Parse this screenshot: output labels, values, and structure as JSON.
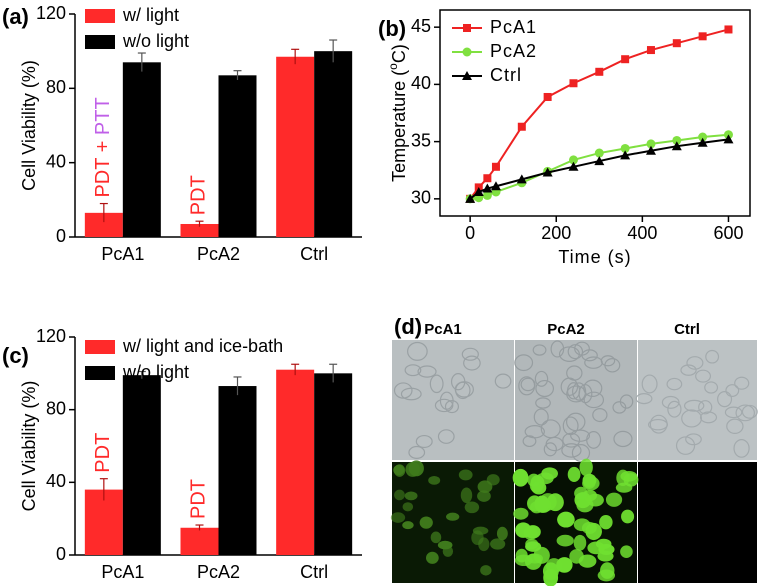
{
  "chart_data": [
    {
      "type": "bar",
      "panel": "(a)",
      "ylabel": "Cell Viability (%)",
      "categories": [
        "PcA1",
        "PcA2",
        "Ctrl"
      ],
      "series": [
        {
          "name": "w/ light",
          "color": "#ff2a2a",
          "values": [
            13,
            7,
            97
          ],
          "errors": [
            5,
            1.5,
            4
          ]
        },
        {
          "name": "w/o light",
          "color": "#000000",
          "values": [
            94,
            87,
            100
          ],
          "errors": [
            5,
            2.5,
            6
          ]
        }
      ],
      "ylim": [
        0,
        120
      ],
      "yticks": [
        0,
        40,
        80,
        120
      ],
      "annotations": [
        {
          "category": 0,
          "parts": [
            {
              "text": "PDT",
              "color": "#ff2a2a"
            },
            {
              "text": " + ",
              "color": "#ff2a2a"
            },
            {
              "text": "PTT",
              "color": "#c060e8"
            }
          ]
        },
        {
          "category": 1,
          "parts": [
            {
              "text": "PDT",
              "color": "#ff2a2a"
            }
          ]
        }
      ]
    },
    {
      "type": "line",
      "panel": "(b)",
      "xlabel": "Time (s)",
      "ylabel": "Temperature (",
      "ylabel_sup": "o",
      "ylabel_end": "C)",
      "x": [
        0,
        20,
        40,
        60,
        120,
        180,
        240,
        300,
        360,
        420,
        480,
        540,
        600
      ],
      "series": [
        {
          "name": "PcA1",
          "color": "#ee2222",
          "marker": "square",
          "values": [
            30,
            31,
            31.8,
            32.8,
            36.3,
            38.9,
            40.1,
            41.1,
            42.2,
            43,
            43.6,
            44.2,
            44.8
          ]
        },
        {
          "name": "PcA2",
          "color": "#80e040",
          "marker": "circle",
          "values": [
            30,
            30.1,
            30.3,
            30.6,
            31.4,
            32.4,
            33.4,
            34,
            34.4,
            34.8,
            35.1,
            35.4,
            35.6
          ]
        },
        {
          "name": "Ctrl",
          "color": "#000000",
          "marker": "triangle",
          "values": [
            30,
            30.6,
            30.9,
            31.1,
            31.7,
            32.3,
            32.8,
            33.3,
            33.8,
            34.2,
            34.6,
            34.9,
            35.2
          ]
        }
      ],
      "xlim": [
        -70,
        650
      ],
      "xticks": [
        0,
        200,
        400,
        600
      ],
      "ylim": [
        28.5,
        46.5
      ],
      "yticks": [
        30,
        35,
        40,
        45
      ]
    },
    {
      "type": "bar",
      "panel": "(c)",
      "ylabel": "Cell Viability (%)",
      "categories": [
        "PcA1",
        "PcA2",
        "Ctrl"
      ],
      "series": [
        {
          "name": "w/ light and ice-bath",
          "color": "#ff2a2a",
          "values": [
            36,
            15,
            102
          ],
          "errors": [
            6,
            1.5,
            3
          ]
        },
        {
          "name": "w/o light",
          "color": "#000000",
          "values": [
            99,
            93,
            100
          ],
          "errors": [
            2,
            5,
            5
          ]
        }
      ],
      "ylim": [
        0,
        120
      ],
      "yticks": [
        0,
        40,
        80,
        120
      ],
      "annotations": [
        {
          "category": 0,
          "parts": [
            {
              "text": "PDT",
              "color": "#ff2a2a"
            }
          ]
        },
        {
          "category": 1,
          "parts": [
            {
              "text": "PDT",
              "color": "#ff2a2a"
            }
          ]
        }
      ]
    }
  ],
  "image_panel": {
    "panel": "(d)",
    "columns": [
      "PcA1",
      "PcA2",
      "Ctrl"
    ]
  }
}
